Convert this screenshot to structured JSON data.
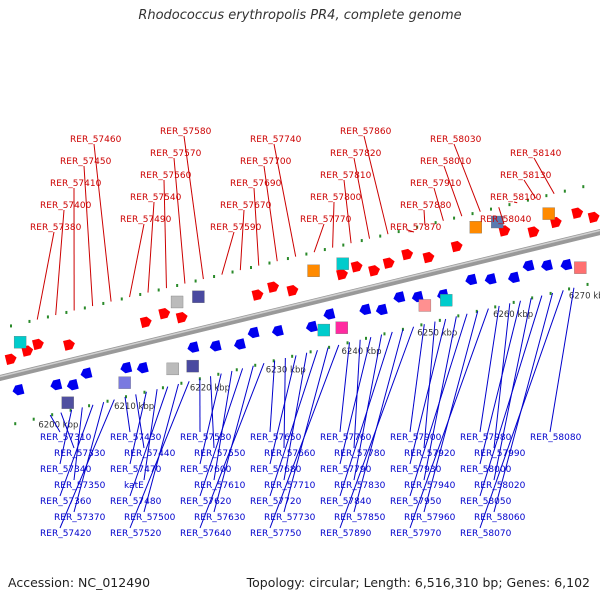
{
  "title": "Rhodococcus erythropolis PR4, complete genome",
  "footer": {
    "accession": "Accession: NC_012490",
    "summary": "Topology: circular; Length: 6,516,310 bp; Genes: 6,102"
  },
  "colors": {
    "forward_label": "#cc0000",
    "reverse_label": "#0000cc",
    "forward_gene": "#ff0000",
    "reverse_gene": "#0000ee",
    "backbone": "#888888",
    "tick": "#2a8a2a"
  },
  "scale_labels": [
    "6200 kbp",
    "6210 kbp",
    "6220 kbp",
    "6230 kbp",
    "6240 kbp",
    "6250 kbp",
    "6260 kbp",
    "6270 kbp"
  ],
  "forward_genes": [
    "RER_57380",
    "RER_57400",
    "RER_57410",
    "RER_57450",
    "RER_57460",
    "RER_57490",
    "RER_57540",
    "RER_57560",
    "RER_57570",
    "RER_57580",
    "RER_57590",
    "RER_57670",
    "RER_57690",
    "RER_57700",
    "RER_57740",
    "RER_57770",
    "RER_57800",
    "RER_57810",
    "RER_57820",
    "RER_57860",
    "RER_57870",
    "RER_57880",
    "RER_57910",
    "RER_58010",
    "RER_58030",
    "RER_58040",
    "RER_58100",
    "RER_58130",
    "RER_58140"
  ],
  "reverse_genes": [
    "RER_57310",
    "RER_57330",
    "RER_57340",
    "RER_57350",
    "RER_57360",
    "RER_57370",
    "RER_57420",
    "RER_57430",
    "RER_57440",
    "RER_57470",
    "katE",
    "RER_57480",
    "RER_57500",
    "RER_57520",
    "RER_57530",
    "RER_57550",
    "RER_57600",
    "RER_57610",
    "RER_57620",
    "RER_57630",
    "RER_57640",
    "RER_57650",
    "RER_57660",
    "RER_57680",
    "RER_57710",
    "RER_57720",
    "RER_57730",
    "RER_57750",
    "RER_57760",
    "RER_57780",
    "RER_57790",
    "RER_57830",
    "RER_57840",
    "RER_57850",
    "RER_57890",
    "RER_57900",
    "RER_57920",
    "RER_57930",
    "RER_57940",
    "RER_57950",
    "RER_57960",
    "RER_57970",
    "RER_57980",
    "RER_57990",
    "RER_58000",
    "RER_58020",
    "RER_58050",
    "RER_58060",
    "RER_58070",
    "RER_58080"
  ]
}
